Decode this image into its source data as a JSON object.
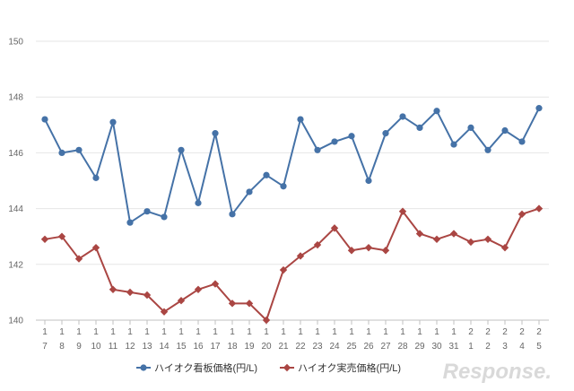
{
  "chart_data": {
    "type": "line",
    "ylim": [
      140,
      150
    ],
    "yticks": [
      140,
      142,
      144,
      146,
      148,
      150
    ],
    "categories": [
      [
        "1",
        "7"
      ],
      [
        "1",
        "8"
      ],
      [
        "1",
        "9"
      ],
      [
        "1",
        "10"
      ],
      [
        "1",
        "11"
      ],
      [
        "1",
        "12"
      ],
      [
        "1",
        "13"
      ],
      [
        "1",
        "14"
      ],
      [
        "1",
        "15"
      ],
      [
        "1",
        "16"
      ],
      [
        "1",
        "17"
      ],
      [
        "1",
        "18"
      ],
      [
        "1",
        "19"
      ],
      [
        "1",
        "20"
      ],
      [
        "1",
        "21"
      ],
      [
        "1",
        "22"
      ],
      [
        "1",
        "23"
      ],
      [
        "1",
        "24"
      ],
      [
        "1",
        "25"
      ],
      [
        "1",
        "26"
      ],
      [
        "1",
        "27"
      ],
      [
        "1",
        "28"
      ],
      [
        "1",
        "29"
      ],
      [
        "1",
        "30"
      ],
      [
        "1",
        "31"
      ],
      [
        "2",
        "1"
      ],
      [
        "2",
        "2"
      ],
      [
        "2",
        "3"
      ],
      [
        "2",
        "4"
      ],
      [
        "2",
        "5"
      ]
    ],
    "series": [
      {
        "name": "ハイオク看板価格(円/L)",
        "color": "#4572a7",
        "marker": "circle",
        "values": [
          147.2,
          146.0,
          146.1,
          145.1,
          147.1,
          143.5,
          143.9,
          143.7,
          146.1,
          144.2,
          146.7,
          143.8,
          144.6,
          145.2,
          144.8,
          147.2,
          146.1,
          146.4,
          146.6,
          145.0,
          146.7,
          147.3,
          146.9,
          147.5,
          146.3,
          146.9,
          146.1,
          146.8,
          146.4,
          147.6
        ]
      },
      {
        "name": "ハイオク実売価格(円/L)",
        "color": "#aa4643",
        "marker": "diamond",
        "values": [
          142.9,
          143.0,
          142.2,
          142.6,
          141.1,
          141.0,
          140.9,
          140.3,
          140.7,
          141.1,
          141.3,
          140.6,
          140.6,
          140.0,
          141.8,
          142.3,
          142.7,
          143.3,
          142.5,
          142.6,
          142.5,
          143.9,
          143.1,
          142.9,
          143.1,
          142.8,
          142.9,
          142.6,
          143.8,
          144.0
        ]
      }
    ]
  },
  "watermark": "Response."
}
